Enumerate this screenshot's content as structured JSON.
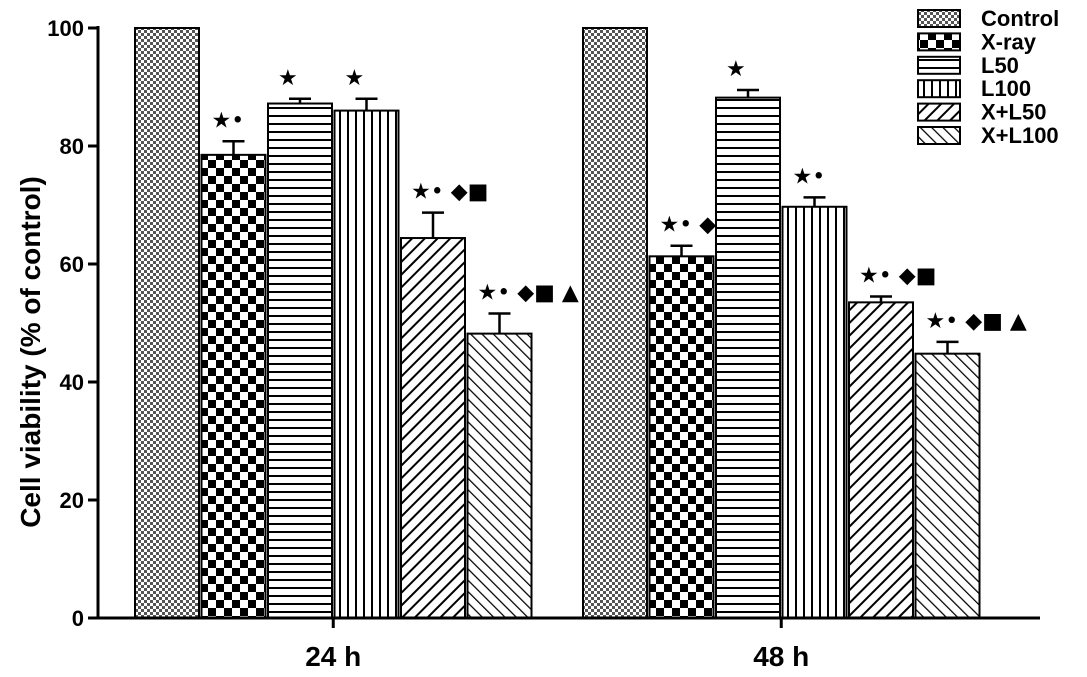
{
  "chart_data": {
    "type": "bar",
    "ylabel": "Cell viability (% of control)",
    "xlabel": "",
    "ylim": [
      0,
      100
    ],
    "yticks": [
      0,
      20,
      40,
      60,
      80,
      100
    ],
    "categories": [
      "24 h",
      "48 h"
    ],
    "legend_position": "top-right",
    "series": [
      {
        "name": "Control",
        "pattern": "checker-fine",
        "values": [
          100,
          100
        ],
        "errors": [
          0,
          0
        ],
        "annotations": [
          "",
          ""
        ]
      },
      {
        "name": "X-ray",
        "pattern": "checker-coarse",
        "values": [
          78.5,
          61.3
        ],
        "errors": [
          2.3,
          1.8
        ],
        "annotations": [
          "★•",
          "★• ◆"
        ]
      },
      {
        "name": "L50",
        "pattern": "horizontal-lines",
        "values": [
          87.2,
          88.2
        ],
        "errors": [
          0.8,
          1.3
        ],
        "annotations": [
          "★",
          "★"
        ]
      },
      {
        "name": "L100",
        "pattern": "vertical-lines",
        "values": [
          86.0,
          69.7
        ],
        "errors": [
          2.0,
          1.6
        ],
        "annotations": [
          "★",
          "★•"
        ]
      },
      {
        "name": "X+L50",
        "pattern": "diagonal-up",
        "values": [
          64.4,
          53.5
        ],
        "errors": [
          4.3,
          1.0
        ],
        "annotations": [
          "★• ◆■",
          "★• ◆■"
        ]
      },
      {
        "name": "X+L100",
        "pattern": "diagonal-down",
        "values": [
          48.2,
          44.8
        ],
        "errors": [
          3.4,
          2.0
        ],
        "annotations": [
          "★• ◆■ ▲",
          "★• ◆■ ▲"
        ]
      }
    ]
  }
}
